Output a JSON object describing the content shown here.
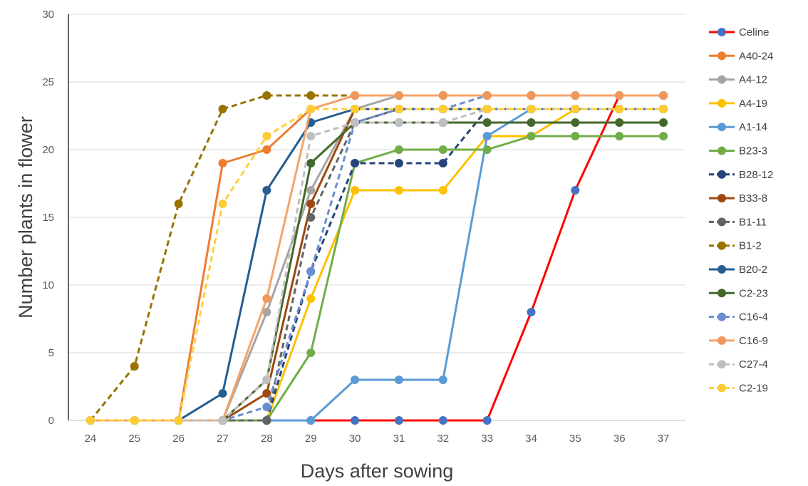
{
  "chart_data": {
    "type": "line",
    "title": "",
    "xlabel": "Days after sowing",
    "ylabel": "Number plants in flower",
    "x": [
      24,
      25,
      26,
      27,
      28,
      29,
      30,
      31,
      32,
      33,
      34,
      35,
      36,
      37
    ],
    "ylim": [
      0,
      30
    ],
    "yticks": [
      0,
      5,
      10,
      15,
      20,
      25,
      30
    ],
    "grid": "horizontal",
    "legend_position": "right",
    "series": [
      {
        "name": "Celine",
        "color": "#ff0000",
        "dash": false,
        "marker": "#4472c4",
        "values": [
          0,
          0,
          0,
          0,
          0,
          0,
          0,
          0,
          0,
          0,
          8,
          17,
          24,
          24
        ]
      },
      {
        "name": "A40-24",
        "color": "#ed7d31",
        "dash": false,
        "marker": "#ed7d31",
        "values": [
          0,
          0,
          0,
          19,
          20,
          23,
          24,
          24,
          24,
          24,
          24,
          24,
          24,
          24
        ]
      },
      {
        "name": "A4-12",
        "color": "#a5a5a5",
        "dash": false,
        "marker": "#a5a5a5",
        "values": [
          0,
          0,
          0,
          0,
          8,
          17,
          23,
          24,
          24,
          24,
          24,
          24,
          24,
          24
        ]
      },
      {
        "name": "A4-19",
        "color": "#ffc000",
        "dash": false,
        "marker": "#ffc000",
        "values": [
          0,
          0,
          0,
          0,
          0,
          9,
          17,
          17,
          17,
          21,
          21,
          23,
          23,
          23
        ]
      },
      {
        "name": "A1-14",
        "color": "#5b9bd5",
        "dash": false,
        "marker": "#5b9bd5",
        "values": [
          0,
          0,
          0,
          0,
          0,
          0,
          3,
          3,
          3,
          21,
          23,
          23,
          23,
          23
        ]
      },
      {
        "name": "B23-3",
        "color": "#70ad47",
        "dash": false,
        "marker": "#70ad47",
        "values": [
          0,
          0,
          0,
          0,
          0,
          5,
          19,
          20,
          20,
          20,
          21,
          21,
          21,
          21
        ]
      },
      {
        "name": "B28-12",
        "color": "#264478",
        "dash": true,
        "marker": "#264478",
        "values": [
          0,
          0,
          0,
          0,
          0,
          11,
          19,
          19,
          19,
          23,
          23,
          23,
          23,
          23
        ]
      },
      {
        "name": "B33-8",
        "color": "#9e480e",
        "dash": false,
        "marker": "#9e480e",
        "values": [
          0,
          0,
          0,
          0,
          2,
          16,
          23,
          23,
          23,
          23,
          23,
          23,
          23,
          23
        ]
      },
      {
        "name": "B1-11",
        "color": "#636363",
        "dash": true,
        "marker": "#636363",
        "values": [
          0,
          0,
          0,
          0,
          0,
          15,
          22,
          23,
          23,
          23,
          23,
          23,
          23,
          23
        ]
      },
      {
        "name": "B1-2",
        "color": "#997300",
        "dash": true,
        "marker": "#997300",
        "values": [
          0,
          4,
          16,
          23,
          24,
          24,
          24,
          24,
          24,
          24,
          24,
          24,
          24,
          24
        ]
      },
      {
        "name": "B20-2",
        "color": "#255e91",
        "dash": false,
        "marker": "#255e91",
        "values": [
          0,
          0,
          0,
          2,
          17,
          22,
          23,
          23,
          23,
          23,
          23,
          23,
          23,
          23
        ]
      },
      {
        "name": "C2-23",
        "color": "#43682b",
        "dash": false,
        "marker": "#43682b",
        "values": [
          0,
          0,
          0,
          0,
          3,
          19,
          22,
          22,
          22,
          22,
          22,
          22,
          22,
          22
        ]
      },
      {
        "name": "C16-4",
        "color": "#698ed0",
        "dash": true,
        "marker": "#698ed0",
        "values": [
          0,
          0,
          0,
          0,
          1,
          11,
          22,
          23,
          23,
          24,
          24,
          24,
          24,
          24
        ]
      },
      {
        "name": "C16-9",
        "color": "#f4a46a",
        "dash": false,
        "marker": "#f1975a",
        "values": [
          0,
          0,
          0,
          0,
          9,
          23,
          24,
          24,
          24,
          24,
          24,
          24,
          24,
          24
        ]
      },
      {
        "name": "C27-4",
        "color": "#bfbfbf",
        "dash": true,
        "marker": "#bfbfbf",
        "values": [
          0,
          0,
          0,
          0,
          3,
          21,
          22,
          22,
          22,
          23,
          23,
          23,
          23,
          23
        ]
      },
      {
        "name": "C2-19",
        "color": "#ffd03c",
        "dash": true,
        "marker": "#ffcd33",
        "values": [
          0,
          0,
          0,
          16,
          21,
          23,
          23,
          23,
          23,
          23,
          23,
          23,
          23,
          23
        ]
      }
    ]
  }
}
